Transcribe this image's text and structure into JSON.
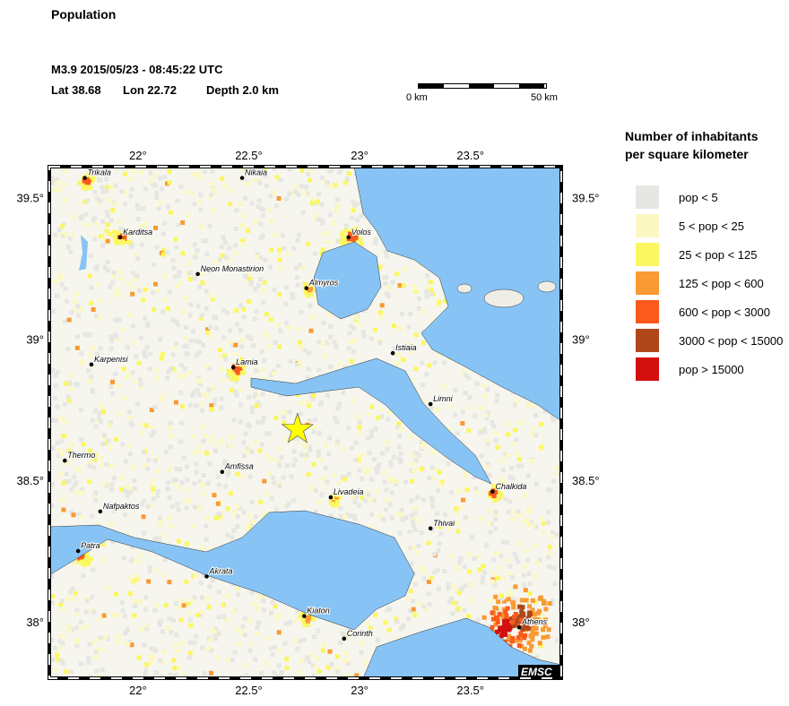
{
  "title": "Population",
  "event": {
    "line1": "M3.9  2015/05/23 - 08:45:22 UTC",
    "lat_label": "Lat 38.68",
    "lon_label": "Lon  22.72",
    "depth_label": "Depth  2.0 km",
    "lat": 38.68,
    "lon": 22.72
  },
  "scalebar": {
    "start": "0 km",
    "end": "50 km"
  },
  "legend": {
    "title_line1": "Number of inhabitants",
    "title_line2": "per square kilometer",
    "items": [
      {
        "label": "pop < 5",
        "color": "#e6e6e3"
      },
      {
        "label": "5 < pop < 25",
        "color": "#fbf8c4"
      },
      {
        "label": "25 < pop < 125",
        "color": "#fbf760"
      },
      {
        "label": "125 < pop < 600",
        "color": "#f99a33"
      },
      {
        "label": "600 < pop < 3000",
        "color": "#fa5a1c"
      },
      {
        "label": "3000 < pop < 15000",
        "color": "#b0471a"
      },
      {
        "label": "pop > 15000",
        "color": "#d30f0f"
      }
    ]
  },
  "axes": {
    "lon_ticks": [
      "22°",
      "22.5°",
      "23°",
      "23.5°"
    ],
    "lat_ticks": [
      "39.5°",
      "39°",
      "38.5°",
      "38°"
    ]
  },
  "colors": {
    "sea": "#87c4f5",
    "land": "#f6f6ee",
    "epicenter": "#ffff00"
  },
  "cities": [
    {
      "name": "Trikala",
      "lat": 39.57,
      "lon": 21.76
    },
    {
      "name": "Nikaia",
      "lat": 39.57,
      "lon": 22.47
    },
    {
      "name": "Karditsa",
      "lat": 39.36,
      "lon": 21.92
    },
    {
      "name": "Volos",
      "lat": 39.36,
      "lon": 22.95
    },
    {
      "name": "Neon Monastirion",
      "lat": 39.23,
      "lon": 22.27
    },
    {
      "name": "Almyros",
      "lat": 39.18,
      "lon": 22.76
    },
    {
      "name": "Istiaia",
      "lat": 38.95,
      "lon": 23.15
    },
    {
      "name": "Karpenisi",
      "lat": 38.91,
      "lon": 21.79
    },
    {
      "name": "Lamia",
      "lat": 38.9,
      "lon": 22.43
    },
    {
      "name": "Limni",
      "lat": 38.77,
      "lon": 23.32
    },
    {
      "name": "Thermo",
      "lat": 38.57,
      "lon": 21.67
    },
    {
      "name": "Amfissa",
      "lat": 38.53,
      "lon": 22.38
    },
    {
      "name": "Livadeia",
      "lat": 38.44,
      "lon": 22.87
    },
    {
      "name": "Chalkida",
      "lat": 38.46,
      "lon": 23.6
    },
    {
      "name": "Nafpaktos",
      "lat": 38.39,
      "lon": 21.83
    },
    {
      "name": "Thivai",
      "lat": 38.33,
      "lon": 23.32
    },
    {
      "name": "Patra",
      "lat": 38.25,
      "lon": 21.73
    },
    {
      "name": "Akrata",
      "lat": 38.16,
      "lon": 22.31
    },
    {
      "name": "Kiaton",
      "lat": 38.02,
      "lon": 22.75
    },
    {
      "name": "Corinth",
      "lat": 37.94,
      "lon": 22.93
    },
    {
      "name": "Athens",
      "lat": 37.98,
      "lon": 23.72
    }
  ],
  "logo": "EMSC"
}
